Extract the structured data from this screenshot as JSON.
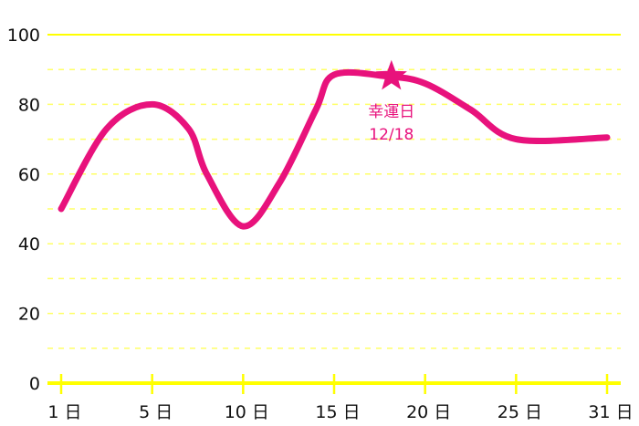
{
  "chart_data": {
    "type": "line",
    "title": "",
    "xlabel": "",
    "ylabel": "",
    "ylim": [
      0,
      100
    ],
    "y_ticks": [
      "0",
      "20",
      "40",
      "60",
      "80",
      "100"
    ],
    "y_tick_values": [
      0,
      20,
      40,
      60,
      80,
      100
    ],
    "grid": "dashed horizontal every 10",
    "x_ticks": [
      "1 日",
      "5 日",
      "10 日",
      "15 日",
      "20 日",
      "25 日",
      "31 日"
    ],
    "x_tick_values": [
      1,
      5,
      10,
      15,
      20,
      25,
      31
    ],
    "series": [
      {
        "x": [
          1,
          3,
          5,
          7,
          8,
          10,
          12,
          14,
          15,
          18,
          20,
          22.5,
          25,
          31
        ],
        "y": [
          50,
          73,
          80,
          73,
          60,
          45,
          57.5,
          78.5,
          88.5,
          88,
          86,
          78.5,
          70,
          70.5
        ]
      }
    ],
    "annotation": {
      "label": "幸運日",
      "date": "12/18",
      "x": 18,
      "y": 88,
      "marker": "star-icon"
    },
    "colors": {
      "line": "#e8127c",
      "axis": "#ffff00",
      "grid": "#ffff66",
      "text": "#111111"
    }
  }
}
